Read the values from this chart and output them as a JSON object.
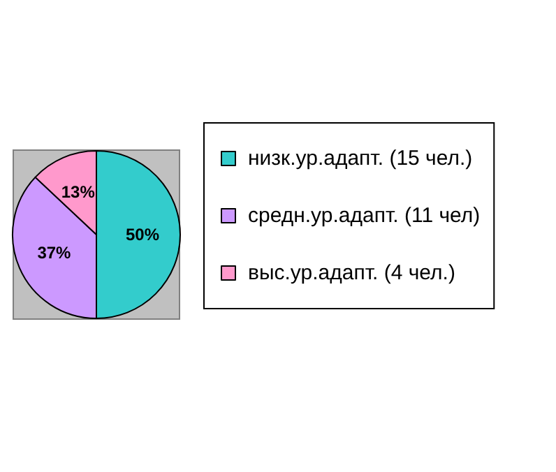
{
  "chart_data": {
    "type": "pie",
    "categories": [
      "низк.ур.адапт. (15 чел.)",
      "средн.ур.адапт. (11 чел)",
      "выс.ур.адапт. (4 чел.)"
    ],
    "values": [
      50,
      37,
      13
    ],
    "colors": [
      "#33cccc",
      "#cc99ff",
      "#ff99cc"
    ],
    "value_labels": [
      "50%",
      "37%",
      "13%"
    ],
    "legend": "right"
  }
}
